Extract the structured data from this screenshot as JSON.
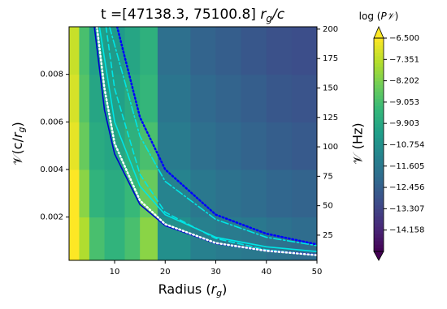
{
  "chart_data": {
    "type": "heatmap",
    "title": [
      "t =[47138.3, 75100.8] ",
      "r",
      "g",
      "/c"
    ],
    "x_label": [
      "Radius (",
      "r",
      "g",
      ")"
    ],
    "y_label": [
      "𝒱(c/",
      "r",
      "g",
      ")"
    ],
    "y2_label": "𝒱 (Hz)",
    "colorbar_label": [
      "log (",
      "P𝒱",
      ")"
    ],
    "xlim": [
      1,
      50
    ],
    "xticks": [
      10,
      20,
      30,
      40,
      50
    ],
    "ylim": [
      0.00018,
      0.01
    ],
    "yticks": [
      0.002,
      0.004,
      0.006,
      0.008
    ],
    "y2lim": [
      3.6,
      202
    ],
    "y2ticks": [
      25,
      50,
      75,
      100,
      125,
      150,
      175,
      200
    ],
    "colormap": "viridis",
    "clim": [
      -15.01,
      -6.5
    ],
    "cticks": [
      {
        "value": -6.5,
        "label": "−6.500"
      },
      {
        "value": -7.351,
        "label": "−7.351"
      },
      {
        "value": -8.202,
        "label": "−8.202"
      },
      {
        "value": -9.053,
        "label": "−9.053"
      },
      {
        "value": -9.903,
        "label": "−9.903"
      },
      {
        "value": -10.754,
        "label": "−10.754"
      },
      {
        "value": -11.605,
        "label": "−11.605"
      },
      {
        "value": -12.456,
        "label": "−12.456"
      },
      {
        "value": -13.307,
        "label": "−13.307"
      },
      {
        "value": -14.158,
        "label": "−14.158"
      }
    ],
    "x_bins": [
      1,
      3,
      5,
      8,
      12,
      15,
      18.5,
      25,
      30,
      35,
      40,
      45,
      50
    ],
    "y_bins": [
      0.00018,
      0.002,
      0.004,
      0.006,
      0.008,
      0.01
    ],
    "z": [
      [
        -6.5,
        -7.5,
        -9.0,
        -9.5,
        -9.0,
        -8.0,
        -10.8,
        -11.3,
        -11.5,
        -11.6,
        -11.8,
        -12.0
      ],
      [
        -6.5,
        -8.0,
        -9.5,
        -9.8,
        -9.3,
        -8.5,
        -11.2,
        -11.6,
        -11.8,
        -12.0,
        -12.2,
        -12.3
      ],
      [
        -6.8,
        -8.5,
        -9.8,
        -10.0,
        -9.6,
        -9.0,
        -11.5,
        -11.9,
        -12.1,
        -12.3,
        -12.5,
        -12.6
      ],
      [
        -7.0,
        -8.8,
        -10.0,
        -10.2,
        -9.8,
        -9.4,
        -11.7,
        -12.1,
        -12.3,
        -12.5,
        -12.7,
        -12.8
      ],
      [
        -7.2,
        -9.0,
        -10.2,
        -10.4,
        -10.0,
        -9.6,
        -11.9,
        -12.3,
        -12.5,
        -12.7,
        -12.9,
        -13.0
      ]
    ],
    "lines": [
      {
        "color": "#00e5e5",
        "style": "dashed",
        "x": [
          8.3,
          10,
          15,
          20,
          30,
          40,
          50
        ],
        "values": [
          0.01,
          0.0074,
          0.0038,
          0.0022,
          0.0011,
          0.00062,
          0.0004
        ]
      },
      {
        "color": "#00e5e5",
        "style": "solid",
        "x": [
          7,
          10,
          15,
          20,
          30,
          40,
          50
        ],
        "values": [
          0.01,
          0.006,
          0.0033,
          0.0021,
          0.00115,
          0.00075,
          0.00055
        ]
      },
      {
        "color": "#00e5e5",
        "style": "dashdot",
        "x": [
          9,
          15,
          20,
          30,
          40,
          50
        ],
        "values": [
          0.01,
          0.0054,
          0.0035,
          0.0019,
          0.00115,
          0.0008
        ]
      },
      {
        "color": "#0000cd",
        "style": "solid",
        "x": [
          6,
          8,
          10,
          15,
          20,
          30,
          40,
          50
        ],
        "values": [
          0.01,
          0.0065,
          0.00465,
          0.00253,
          0.00164,
          0.00089,
          0.00058,
          0.00042
        ]
      },
      {
        "color": "#ffffff",
        "style": "dotted",
        "x": [
          6.5,
          8,
          10,
          15,
          20,
          30,
          40,
          50
        ],
        "values": [
          0.01,
          0.0074,
          0.0051,
          0.0027,
          0.0017,
          0.00091,
          0.00058,
          0.0004
        ]
      },
      {
        "color": "#0000ff",
        "style": "dotted",
        "x": [
          10.5,
          15,
          20,
          30,
          40,
          50
        ],
        "values": [
          0.01,
          0.0062,
          0.004,
          0.0021,
          0.0013,
          0.00085
        ]
      }
    ]
  }
}
